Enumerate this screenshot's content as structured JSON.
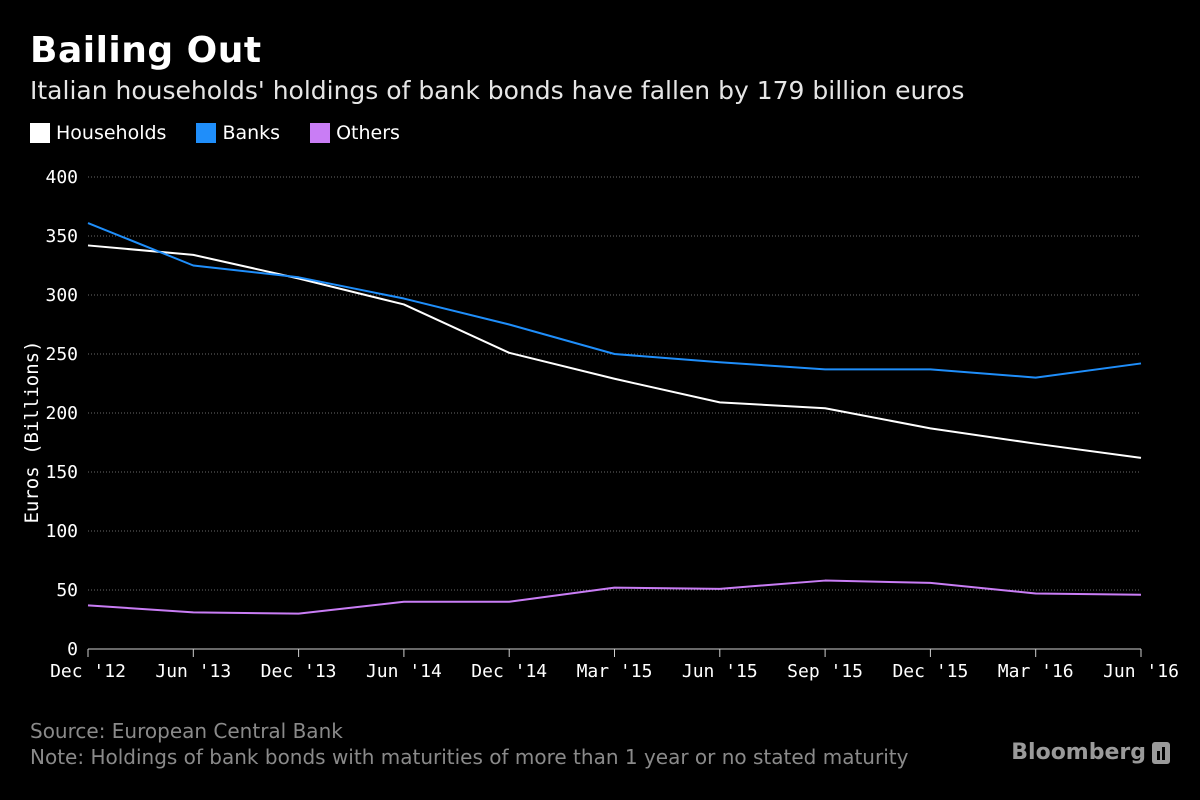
{
  "header": {
    "title": "Bailing Out",
    "subtitle": "Italian households' holdings of bank bonds have fallen by 179 billion euros"
  },
  "footer": {
    "source": "Source: European Central Bank",
    "note": "Note: Holdings of bank bonds with maturities of more than 1 year or no stated maturity",
    "brand": "Bloomberg",
    "brand_icon": "bloomberg-terminal-icon"
  },
  "chart_data": {
    "type": "line",
    "title": "Bailing Out",
    "subtitle": "Italian households' holdings of bank bonds have fallen by 179 billion euros",
    "ylabel": "Euros (Billions)",
    "xlabel": "",
    "categories": [
      "Dec '12",
      "Jun '13",
      "Dec '13",
      "Jun '14",
      "Dec '14",
      "Mar '15",
      "Jun '15",
      "Sep '15",
      "Dec '15",
      "Mar '16",
      "Jun '16"
    ],
    "series": [
      {
        "name": "Households",
        "color": "#ffffff",
        "values": [
          342,
          334,
          314,
          292,
          251,
          229,
          209,
          204,
          187,
          174,
          162
        ]
      },
      {
        "name": "Banks",
        "color": "#1f8efa",
        "values": [
          361,
          325,
          315,
          297,
          275,
          250,
          243,
          237,
          237,
          230,
          242
        ]
      },
      {
        "name": "Others",
        "color": "#c97df5",
        "values": [
          37,
          31,
          30,
          40,
          40,
          52,
          51,
          58,
          56,
          47,
          46
        ]
      }
    ],
    "ylim": [
      0,
      400
    ],
    "yticks": [
      0,
      50,
      100,
      150,
      200,
      250,
      300,
      350,
      400
    ],
    "grid": true,
    "legend_position": "top-left"
  }
}
